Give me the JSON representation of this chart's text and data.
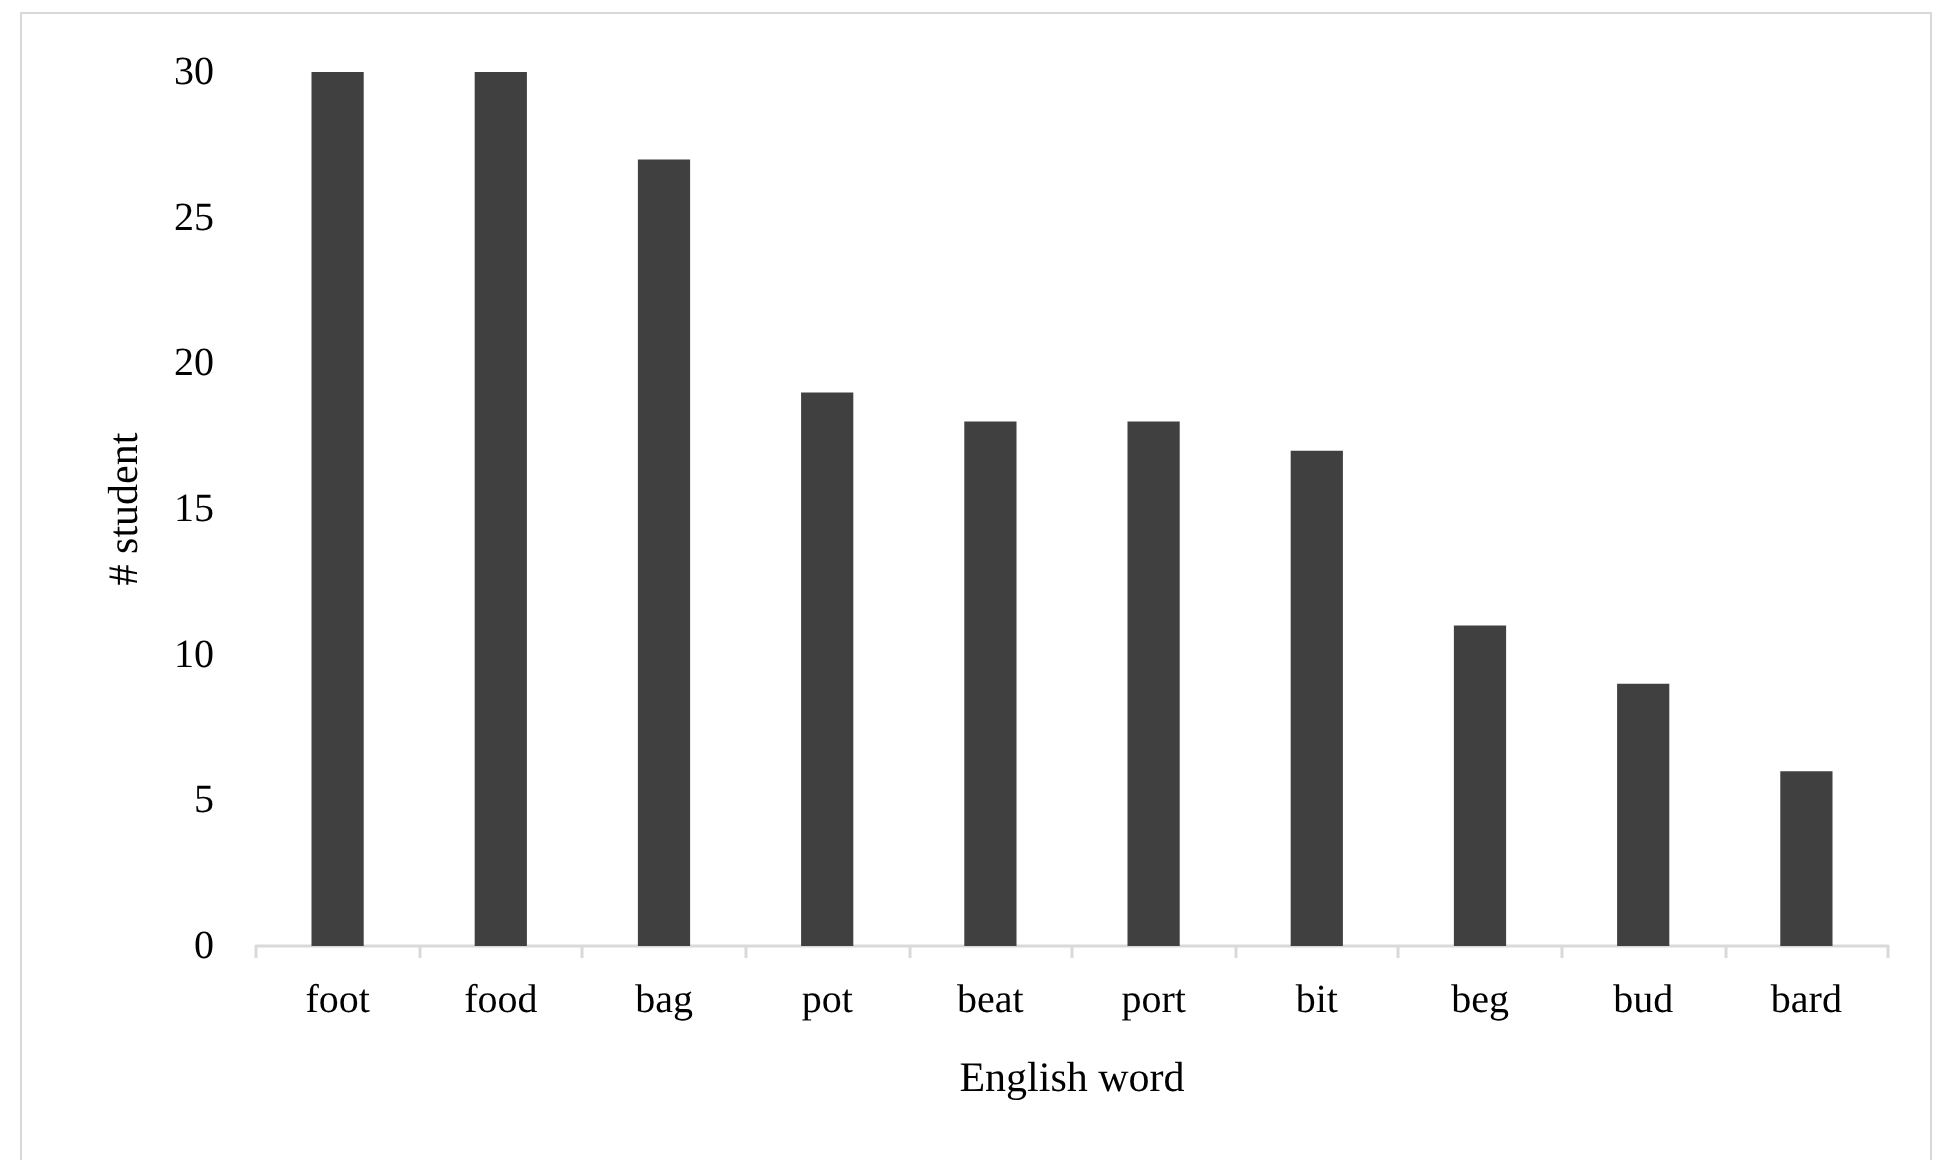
{
  "chart_data": {
    "type": "bar",
    "xlabel": "English word",
    "ylabel": "# student",
    "categories": [
      "foot",
      "food",
      "bag",
      "pot",
      "beat",
      "port",
      "bit",
      "beg",
      "bud",
      "bard"
    ],
    "values": [
      30,
      30,
      27,
      19,
      18,
      18,
      17,
      11,
      9,
      6
    ],
    "color": "#404040",
    "ylim": [
      0,
      30
    ],
    "yticks": [
      0,
      5,
      10,
      15,
      20,
      25,
      30
    ]
  }
}
